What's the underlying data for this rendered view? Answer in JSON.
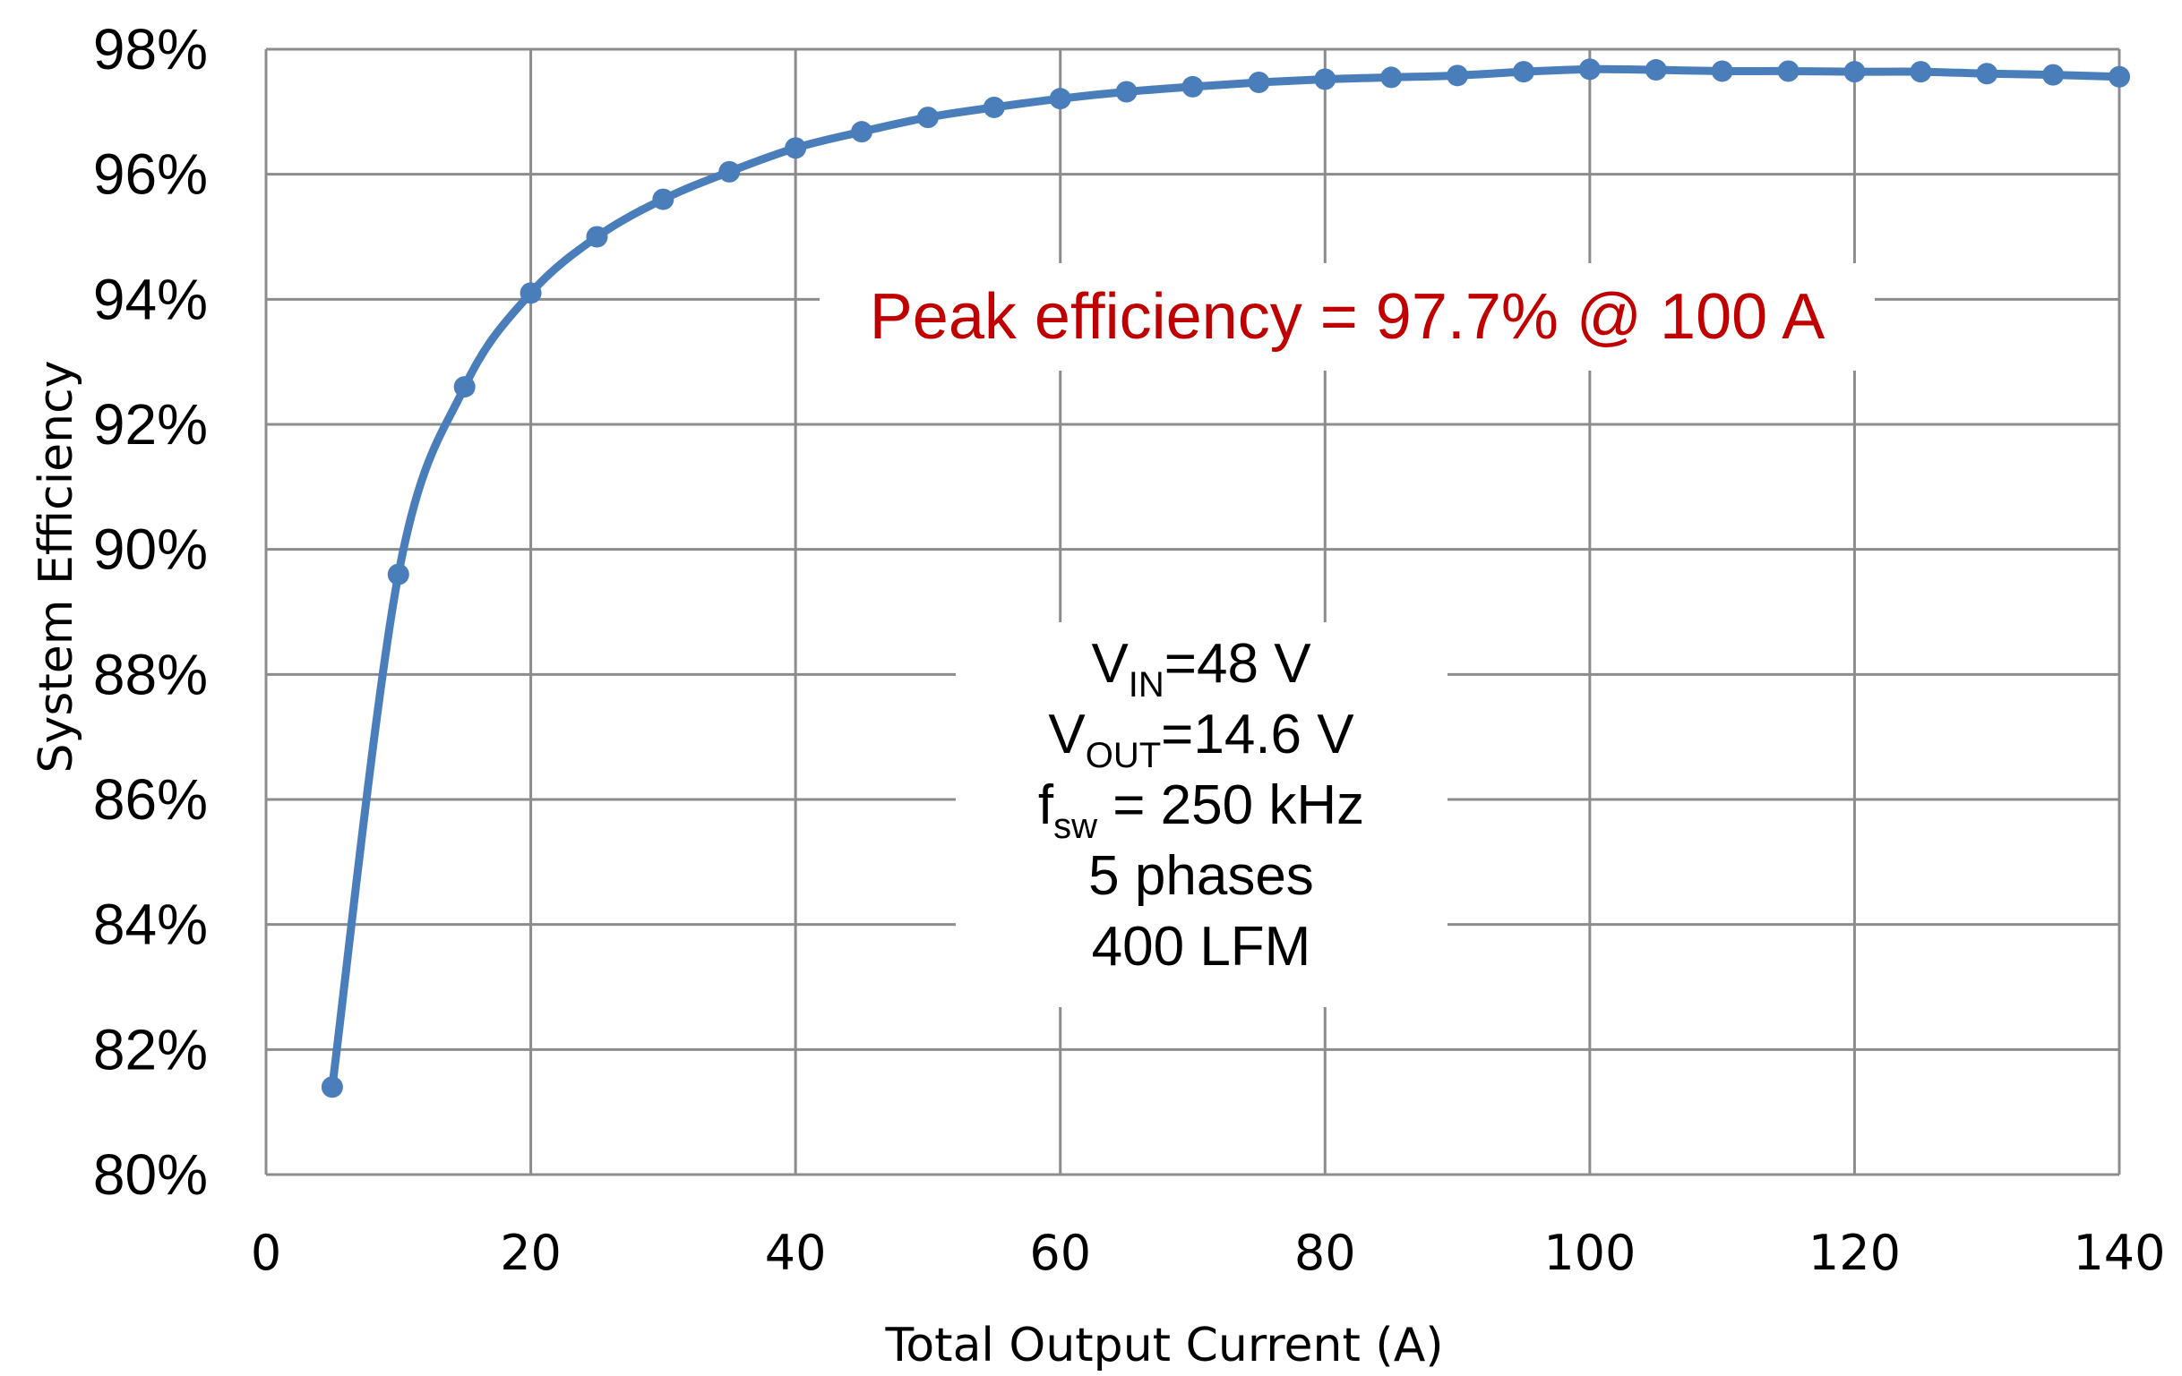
{
  "chart_data": {
    "type": "line",
    "title": "",
    "xlabel": "Total Output Current (A)",
    "ylabel": "System Efficiency",
    "xlim": [
      0,
      140
    ],
    "ylim": [
      80,
      98
    ],
    "grid": true,
    "x_ticks": [
      "0",
      "20",
      "40",
      "60",
      "80",
      "100",
      "120",
      "140"
    ],
    "x_tick_values": [
      0,
      20,
      40,
      60,
      80,
      100,
      120,
      140
    ],
    "y_ticks": [
      "80%",
      "82%",
      "84%",
      "86%",
      "88%",
      "90%",
      "92%",
      "94%",
      "96%",
      "98%"
    ],
    "y_tick_values": [
      80,
      82,
      84,
      86,
      88,
      90,
      92,
      94,
      96,
      98
    ],
    "series": [
      {
        "name": "System Efficiency",
        "color": "#4A7EBB",
        "x": [
          5,
          10,
          15,
          20,
          25,
          30,
          35,
          40,
          45,
          50,
          55,
          60,
          65,
          70,
          75,
          80,
          85,
          90,
          95,
          100,
          105,
          110,
          115,
          120,
          125,
          130,
          135,
          140
        ],
        "values": [
          81.4,
          89.6,
          92.6,
          94.1,
          95.0,
          95.6,
          96.04,
          96.42,
          96.68,
          96.91,
          97.07,
          97.21,
          97.32,
          97.4,
          97.47,
          97.52,
          97.55,
          97.58,
          97.64,
          97.68,
          97.67,
          97.65,
          97.65,
          97.64,
          97.64,
          97.61,
          97.59,
          97.56
        ]
      }
    ],
    "annotations": {
      "peak": {
        "text": "Peak efficiency = 97.7% @ 100 A",
        "color": "#C00000"
      },
      "conditions": [
        {
          "main": "V",
          "sub": "IN",
          "rest": "=48 V"
        },
        {
          "main": "V",
          "sub": "OUT",
          "rest": "=14.6 V"
        },
        {
          "main": "f",
          "sub": "sw",
          "rest": " = 250 kHz"
        },
        {
          "main": "5 phases",
          "sub": "",
          "rest": ""
        },
        {
          "main": "400 LFM",
          "sub": "",
          "rest": ""
        }
      ]
    },
    "colors": {
      "grid": "#8C8C8C",
      "line": "#4A7EBB",
      "marker": "#4A7EBB"
    }
  }
}
